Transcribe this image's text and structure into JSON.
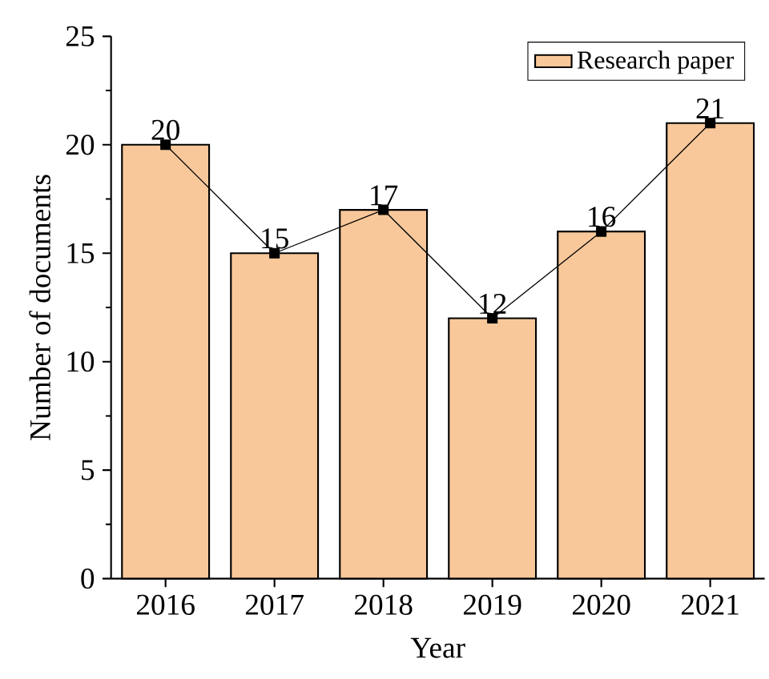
{
  "chart_data": {
    "type": "bar",
    "xlabel": "Year",
    "ylabel": "Number of documents",
    "categories": [
      "2016",
      "2017",
      "2018",
      "2019",
      "2020",
      "2021"
    ],
    "series": [
      {
        "name": "Research paper",
        "color": "#f8c89a",
        "values": [
          20,
          15,
          17,
          12,
          16,
          21
        ],
        "value_labels": [
          "20",
          "15",
          "17",
          "12",
          "16",
          "21"
        ]
      },
      {
        "type": "line",
        "color": "#000000",
        "values": [
          20,
          15,
          17,
          12,
          16,
          21
        ]
      }
    ],
    "ylim": [
      0,
      25
    ],
    "yticks": [
      0,
      5,
      10,
      15,
      20,
      25
    ],
    "legend": "top right",
    "marker": "square"
  }
}
